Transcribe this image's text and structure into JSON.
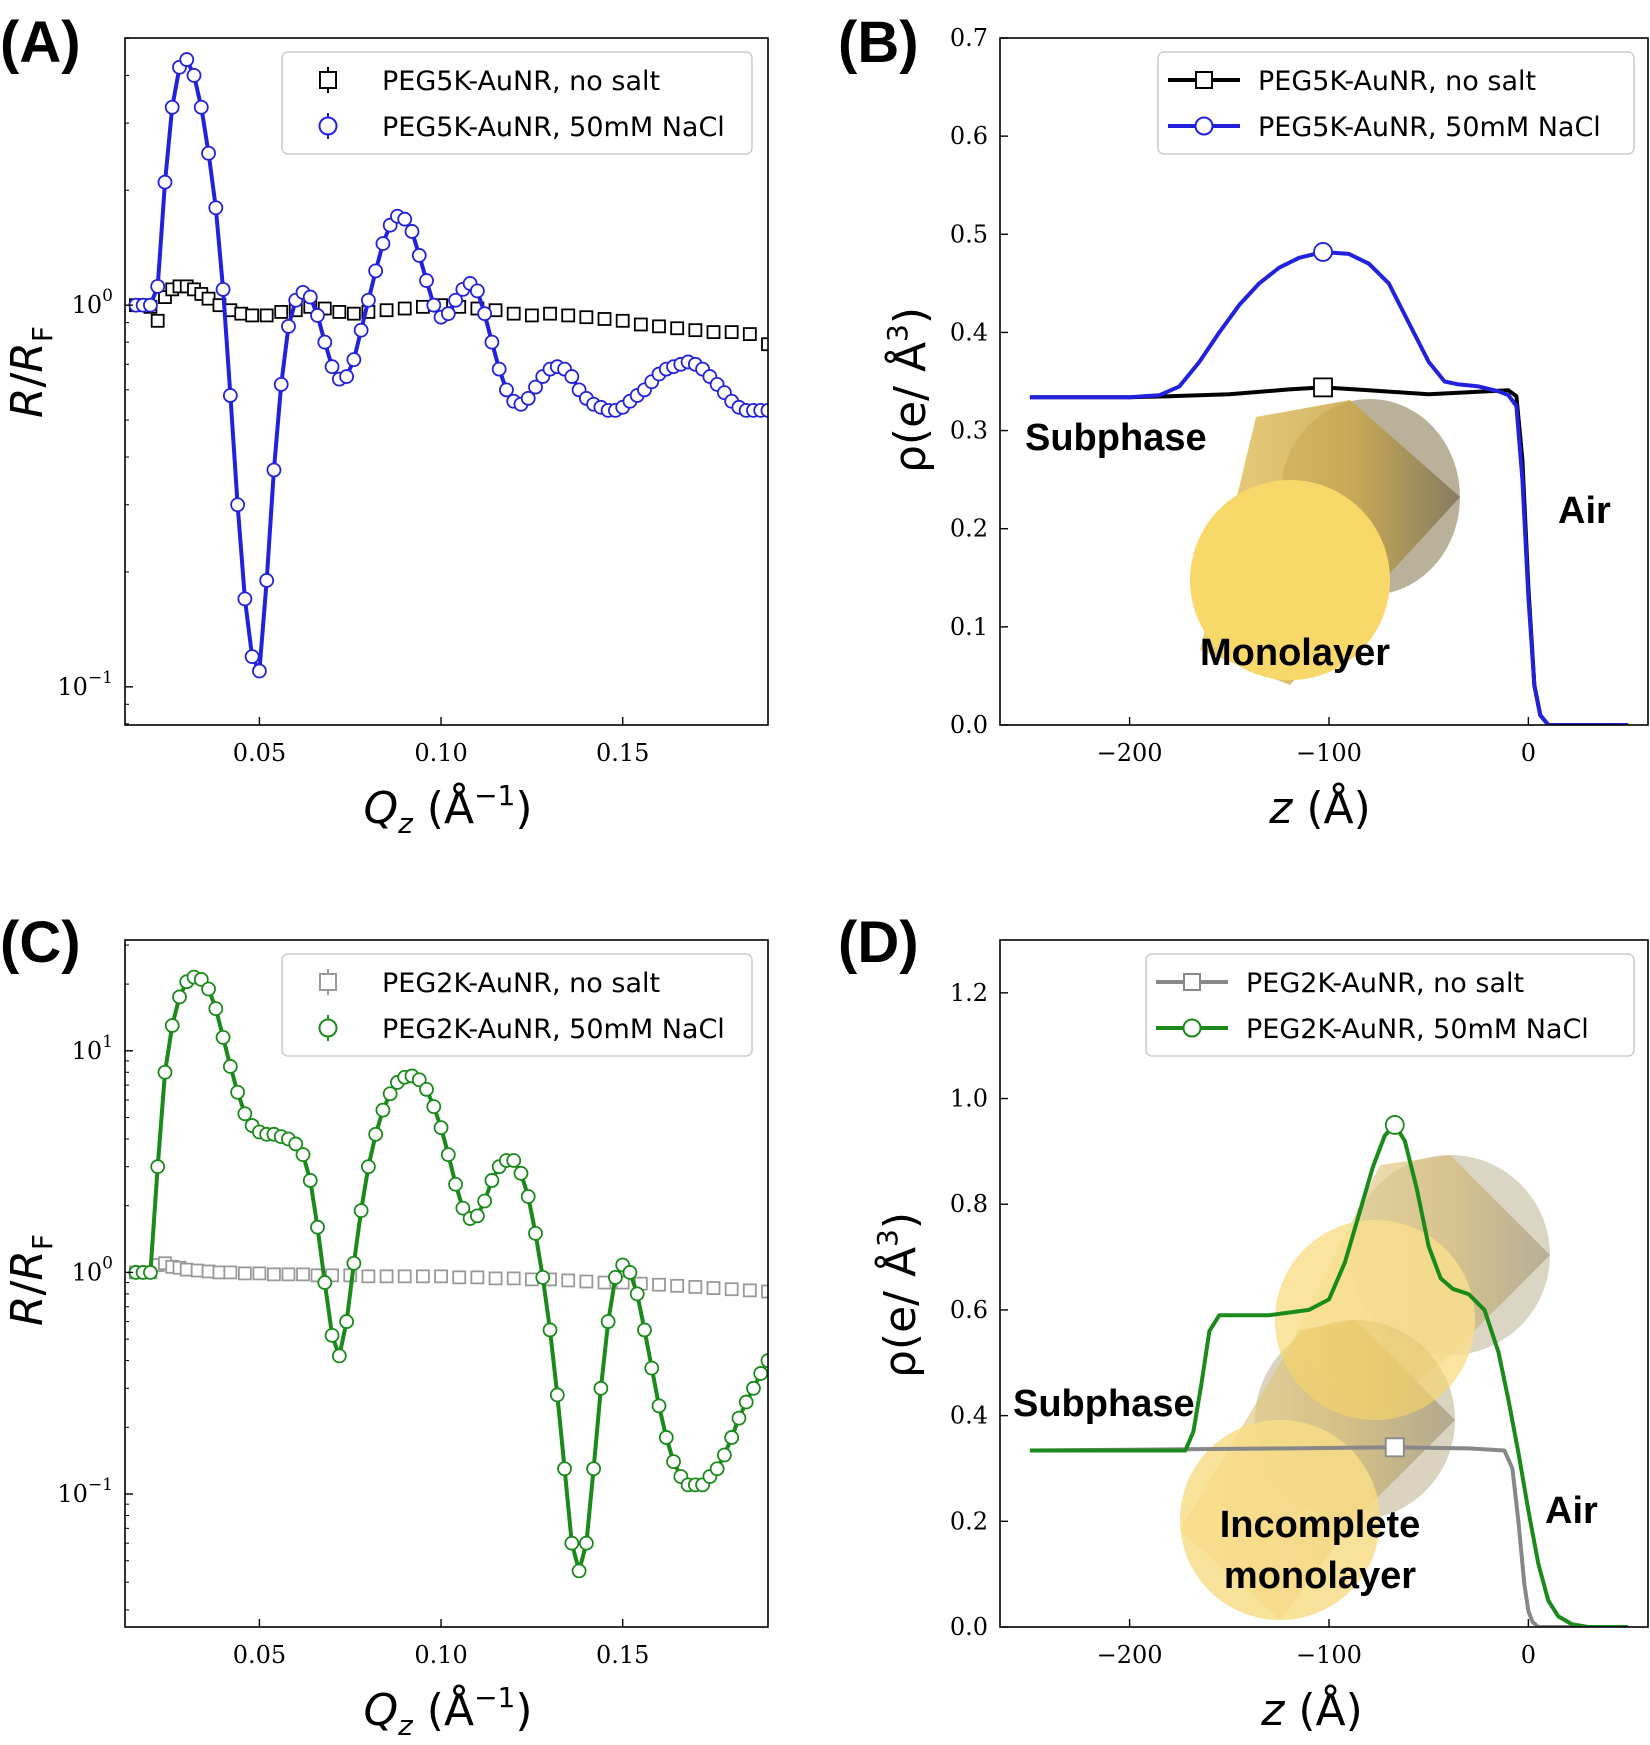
{
  "chart_data": [
    {
      "type": "line",
      "panel_label": "(A)",
      "xlabel": "Q_z (Å^-1)",
      "ylabel": "R/R_F",
      "xlim": [
        0.013,
        0.19
      ],
      "ylim_log10": [
        -1.1,
        0.7
      ],
      "yscale": "log",
      "xticks": [
        0.05,
        0.1,
        0.15
      ],
      "xtick_labels": [
        "0.05",
        "0.10",
        "0.15"
      ],
      "yticks": [
        0,
        -1
      ],
      "ytick_labels": [
        "10^0",
        "10^-1"
      ],
      "legend_position": "top-right",
      "series": [
        {
          "name": "PEG5K-AuNR, no salt",
          "color": "#000000",
          "marker": "square",
          "marker_only": true,
          "x": [
            0.016,
            0.018,
            0.02,
            0.022,
            0.024,
            0.026,
            0.028,
            0.03,
            0.032,
            0.034,
            0.036,
            0.039,
            0.042,
            0.045,
            0.048,
            0.052,
            0.056,
            0.06,
            0.064,
            0.068,
            0.072,
            0.076,
            0.08,
            0.085,
            0.09,
            0.095,
            0.1,
            0.105,
            0.11,
            0.115,
            0.12,
            0.125,
            0.13,
            0.135,
            0.14,
            0.145,
            0.15,
            0.155,
            0.16,
            0.165,
            0.17,
            0.175,
            0.18,
            0.185,
            0.19
          ],
          "y": [
            1.0,
            1.0,
            0.99,
            0.91,
            1.05,
            1.1,
            1.12,
            1.12,
            1.1,
            1.07,
            1.04,
            1.0,
            0.97,
            0.95,
            0.94,
            0.94,
            0.96,
            0.97,
            0.99,
            0.98,
            0.96,
            0.95,
            0.96,
            0.97,
            0.98,
            0.99,
            1.0,
            0.99,
            0.98,
            0.97,
            0.95,
            0.94,
            0.95,
            0.94,
            0.93,
            0.92,
            0.91,
            0.89,
            0.88,
            0.87,
            0.86,
            0.85,
            0.85,
            0.84,
            0.79
          ]
        },
        {
          "name": "PEG5K-AuNR, 50mM NaCl",
          "color": "#2222dd",
          "marker": "circle",
          "x": [
            0.016,
            0.018,
            0.02,
            0.022,
            0.024,
            0.026,
            0.028,
            0.03,
            0.032,
            0.034,
            0.036,
            0.038,
            0.04,
            0.042,
            0.044,
            0.046,
            0.048,
            0.05,
            0.052,
            0.054,
            0.056,
            0.058,
            0.06,
            0.062,
            0.064,
            0.066,
            0.068,
            0.07,
            0.072,
            0.074,
            0.076,
            0.078,
            0.08,
            0.082,
            0.084,
            0.086,
            0.088,
            0.09,
            0.092,
            0.094,
            0.096,
            0.098,
            0.1,
            0.102,
            0.104,
            0.106,
            0.108,
            0.11,
            0.112,
            0.114,
            0.116,
            0.118,
            0.12,
            0.122,
            0.124,
            0.126,
            0.128,
            0.13,
            0.132,
            0.134,
            0.136,
            0.138,
            0.14,
            0.142,
            0.144,
            0.146,
            0.148,
            0.15,
            0.152,
            0.154,
            0.156,
            0.158,
            0.16,
            0.162,
            0.164,
            0.166,
            0.168,
            0.17,
            0.172,
            0.174,
            0.176,
            0.178,
            0.18,
            0.182,
            0.184,
            0.186,
            0.188,
            0.19
          ],
          "y": [
            1.0,
            1.0,
            1.0,
            1.12,
            2.1,
            3.3,
            4.2,
            4.4,
            4.0,
            3.3,
            2.5,
            1.8,
            1.1,
            0.58,
            0.3,
            0.17,
            0.12,
            0.11,
            0.19,
            0.37,
            0.62,
            0.88,
            1.03,
            1.08,
            1.05,
            0.94,
            0.8,
            0.69,
            0.64,
            0.65,
            0.72,
            0.86,
            1.03,
            1.23,
            1.45,
            1.62,
            1.71,
            1.68,
            1.56,
            1.35,
            1.16,
            1.0,
            0.93,
            0.95,
            1.03,
            1.1,
            1.14,
            1.09,
            0.95,
            0.8,
            0.68,
            0.6,
            0.56,
            0.55,
            0.57,
            0.61,
            0.65,
            0.68,
            0.69,
            0.68,
            0.65,
            0.6,
            0.57,
            0.55,
            0.54,
            0.53,
            0.53,
            0.54,
            0.56,
            0.58,
            0.6,
            0.63,
            0.66,
            0.68,
            0.69,
            0.7,
            0.71,
            0.7,
            0.68,
            0.65,
            0.62,
            0.59,
            0.56,
            0.54,
            0.53,
            0.53,
            0.53,
            0.53
          ]
        }
      ]
    },
    {
      "type": "line",
      "panel_label": "(B)",
      "xlabel": "z (Å)",
      "ylabel": "ρ(e/ Å^3)",
      "xlim": [
        -265,
        60
      ],
      "ylim": [
        0.0,
        0.7
      ],
      "xticks": [
        -200,
        -100,
        0
      ],
      "xtick_labels": [
        "−200",
        "−100",
        "0"
      ],
      "yticks": [
        0.0,
        0.1,
        0.2,
        0.3,
        0.4,
        0.5,
        0.6,
        0.7
      ],
      "ytick_labels": [
        "0.0",
        "0.1",
        "0.2",
        "0.3",
        "0.4",
        "0.5",
        "0.6",
        "0.7"
      ],
      "legend_position": "top-right",
      "annotations": [
        "Subphase",
        "Air",
        "Monolayer"
      ],
      "series": [
        {
          "name": "PEG5K-AuNR, no salt",
          "color": "#000000",
          "marker": "square",
          "x": [
            -250,
            -200,
            -180,
            -150,
            -120,
            -103,
            -80,
            -50,
            -30,
            -10,
            -6,
            -3,
            0,
            3,
            6,
            10,
            50
          ],
          "y": [
            0.334,
            0.334,
            0.335,
            0.337,
            0.342,
            0.344,
            0.341,
            0.337,
            0.339,
            0.341,
            0.335,
            0.27,
            0.14,
            0.04,
            0.01,
            0.0,
            0.0
          ]
        },
        {
          "name": "PEG5K-AuNR, 50mM NaCl",
          "color": "#2222dd",
          "marker": "circle",
          "x": [
            -250,
            -200,
            -185,
            -175,
            -165,
            -155,
            -145,
            -135,
            -125,
            -115,
            -103,
            -90,
            -80,
            -70,
            -60,
            -50,
            -42,
            -35,
            -25,
            -15,
            -10,
            -6,
            -3,
            0,
            3,
            6,
            10,
            50
          ],
          "y": [
            0.334,
            0.334,
            0.336,
            0.345,
            0.37,
            0.4,
            0.428,
            0.45,
            0.466,
            0.476,
            0.482,
            0.48,
            0.47,
            0.45,
            0.41,
            0.37,
            0.35,
            0.347,
            0.345,
            0.34,
            0.336,
            0.325,
            0.25,
            0.13,
            0.04,
            0.01,
            0.0,
            0.0
          ]
        }
      ]
    },
    {
      "type": "line",
      "panel_label": "(C)",
      "xlabel": "Q_z (Å^-1)",
      "ylabel": "R/R_F",
      "xlim": [
        0.013,
        0.19
      ],
      "ylim_log10": [
        -1.6,
        1.5
      ],
      "yscale": "log",
      "xticks": [
        0.05,
        0.1,
        0.15
      ],
      "xtick_labels": [
        "0.05",
        "0.10",
        "0.15"
      ],
      "yticks": [
        1,
        0,
        -1
      ],
      "ytick_labels": [
        "10^1",
        "10^0",
        "10^-1"
      ],
      "legend_position": "top-right",
      "series": [
        {
          "name": "PEG2K-AuNR, no salt",
          "color": "#999999",
          "marker": "square",
          "marker_only": true,
          "x": [
            0.016,
            0.018,
            0.02,
            0.022,
            0.024,
            0.026,
            0.028,
            0.03,
            0.033,
            0.036,
            0.039,
            0.042,
            0.046,
            0.05,
            0.054,
            0.058,
            0.062,
            0.066,
            0.07,
            0.075,
            0.08,
            0.085,
            0.09,
            0.095,
            0.1,
            0.105,
            0.11,
            0.115,
            0.12,
            0.125,
            0.13,
            0.135,
            0.14,
            0.145,
            0.15,
            0.155,
            0.16,
            0.165,
            0.17,
            0.175,
            0.18,
            0.185,
            0.19
          ],
          "y": [
            1.0,
            1.0,
            1.0,
            1.08,
            1.1,
            1.06,
            1.05,
            1.03,
            1.02,
            1.01,
            1.0,
            1.0,
            0.99,
            0.99,
            0.98,
            0.98,
            0.98,
            0.97,
            0.97,
            0.97,
            0.96,
            0.96,
            0.96,
            0.96,
            0.96,
            0.95,
            0.95,
            0.94,
            0.94,
            0.93,
            0.93,
            0.92,
            0.91,
            0.9,
            0.9,
            0.89,
            0.88,
            0.87,
            0.86,
            0.85,
            0.84,
            0.83,
            0.82
          ]
        },
        {
          "name": "PEG2K-AuNR, 50mM NaCl",
          "color": "#1a8a1a",
          "marker": "circle",
          "x": [
            0.016,
            0.018,
            0.02,
            0.022,
            0.024,
            0.026,
            0.028,
            0.03,
            0.032,
            0.034,
            0.036,
            0.038,
            0.04,
            0.042,
            0.044,
            0.046,
            0.048,
            0.05,
            0.052,
            0.054,
            0.056,
            0.058,
            0.06,
            0.062,
            0.064,
            0.066,
            0.068,
            0.07,
            0.072,
            0.074,
            0.076,
            0.078,
            0.08,
            0.082,
            0.084,
            0.086,
            0.088,
            0.09,
            0.092,
            0.094,
            0.096,
            0.098,
            0.1,
            0.102,
            0.104,
            0.106,
            0.108,
            0.11,
            0.112,
            0.114,
            0.116,
            0.118,
            0.12,
            0.122,
            0.124,
            0.126,
            0.128,
            0.13,
            0.132,
            0.134,
            0.136,
            0.138,
            0.14,
            0.142,
            0.144,
            0.146,
            0.148,
            0.15,
            0.152,
            0.154,
            0.156,
            0.158,
            0.16,
            0.162,
            0.164,
            0.166,
            0.168,
            0.17,
            0.172,
            0.174,
            0.176,
            0.178,
            0.18,
            0.182,
            0.184,
            0.186,
            0.188,
            0.19
          ],
          "y": [
            1.0,
            1.0,
            1.0,
            3.0,
            8.0,
            13.0,
            17.5,
            20.5,
            21.5,
            21.0,
            19.0,
            15.5,
            11.5,
            8.5,
            6.5,
            5.2,
            4.6,
            4.3,
            4.2,
            4.2,
            4.1,
            4.0,
            3.8,
            3.4,
            2.6,
            1.6,
            0.9,
            0.52,
            0.42,
            0.6,
            1.1,
            1.9,
            3.0,
            4.2,
            5.4,
            6.4,
            7.2,
            7.6,
            7.7,
            7.4,
            6.7,
            5.6,
            4.5,
            3.4,
            2.5,
            1.95,
            1.75,
            1.8,
            2.1,
            2.6,
            3.0,
            3.2,
            3.2,
            2.8,
            2.2,
            1.5,
            0.95,
            0.55,
            0.28,
            0.13,
            0.06,
            0.045,
            0.06,
            0.13,
            0.3,
            0.6,
            0.95,
            1.08,
            1.0,
            0.8,
            0.55,
            0.37,
            0.25,
            0.18,
            0.14,
            0.12,
            0.11,
            0.11,
            0.11,
            0.12,
            0.13,
            0.15,
            0.18,
            0.22,
            0.26,
            0.3,
            0.35,
            0.4
          ]
        }
      ]
    },
    {
      "type": "line",
      "panel_label": "(D)",
      "xlabel": "z (Å)",
      "ylabel": "ρ(e/ Å^3)",
      "xlim": [
        -265,
        60
      ],
      "ylim": [
        0.0,
        1.3
      ],
      "xticks": [
        -200,
        -100,
        0
      ],
      "xtick_labels": [
        "−200",
        "−100",
        "0"
      ],
      "yticks": [
        0.0,
        0.2,
        0.4,
        0.6,
        0.8,
        1.0,
        1.2
      ],
      "ytick_labels": [
        "0.0",
        "0.2",
        "0.4",
        "0.6",
        "0.8",
        "1.0",
        "1.2"
      ],
      "legend_position": "top-right",
      "annotations": [
        "Subphase",
        "Air",
        "Incomplete",
        "monolayer"
      ],
      "series": [
        {
          "name": "PEG2K-AuNR, no salt",
          "color": "#888888",
          "marker": "square",
          "x": [
            -250,
            -180,
            -120,
            -67,
            -30,
            -12,
            -8,
            -5,
            -2,
            0,
            2,
            5,
            10,
            50
          ],
          "y": [
            0.334,
            0.336,
            0.338,
            0.34,
            0.338,
            0.334,
            0.3,
            0.2,
            0.08,
            0.03,
            0.01,
            0.0,
            0.0,
            0.0
          ],
          "marker_at": -67
        },
        {
          "name": "PEG2K-AuNR, 50mM NaCl",
          "color": "#1a8a1a",
          "marker": "circle",
          "x": [
            -250,
            -172,
            -168,
            -164,
            -160,
            -155,
            -150,
            -130,
            -110,
            -100,
            -92,
            -85,
            -78,
            -72,
            -67,
            -62,
            -56,
            -50,
            -44,
            -38,
            -30,
            -22,
            -15,
            -10,
            -5,
            0,
            5,
            10,
            15,
            22,
            30,
            50
          ],
          "y": [
            0.334,
            0.334,
            0.37,
            0.46,
            0.56,
            0.59,
            0.59,
            0.59,
            0.6,
            0.62,
            0.69,
            0.78,
            0.87,
            0.93,
            0.95,
            0.92,
            0.83,
            0.72,
            0.66,
            0.64,
            0.63,
            0.6,
            0.52,
            0.43,
            0.33,
            0.22,
            0.12,
            0.05,
            0.02,
            0.005,
            0.0,
            0.0
          ],
          "marker_at": -67
        }
      ]
    }
  ]
}
